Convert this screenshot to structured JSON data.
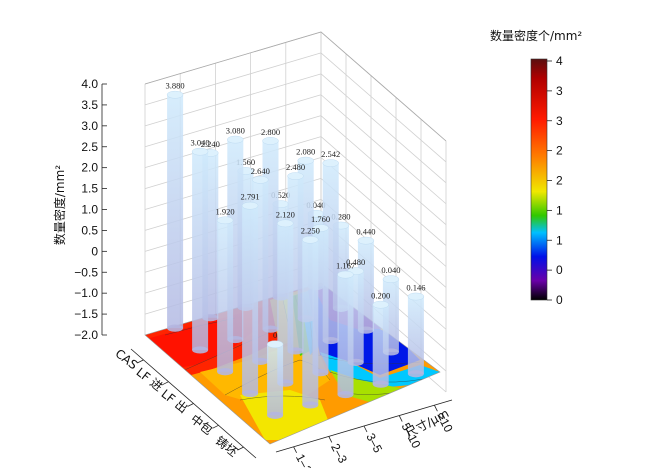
{
  "chart_data": {
    "type": "3d-bar-with-contour",
    "title": "",
    "zlabel": "数量密度/mm²",
    "xlabel": "尺寸/μm",
    "zlim": [
      -2.0,
      4.0
    ],
    "z_ticks": [
      "4.0",
      "3.5",
      "3.0",
      "2.5",
      "2.0",
      "1.5",
      "1.0",
      "0.5",
      "0",
      "−0.5",
      "−1.0",
      "−1.5",
      "−2.0"
    ],
    "size_categories": [
      "1–2",
      "2–3",
      "3–5",
      "5–10",
      ">10"
    ],
    "process_categories": [
      "CAS",
      "LF 进",
      "LF 出",
      "中包",
      "铸坯"
    ],
    "bars": [
      {
        "process": "CAS",
        "size": "1–2",
        "value": 3.88,
        "label": "3.880"
      },
      {
        "process": "CAS",
        "size": "2–3",
        "value": 2.24,
        "label": "2.240"
      },
      {
        "process": "CAS",
        "size": "3–5",
        "value": 1.56,
        "label": "1.560"
      },
      {
        "process": "CAS",
        "size": "5–10",
        "value": 0.52,
        "label": "0.520"
      },
      {
        "process": "CAS",
        "size": ">10",
        "value": 0.04,
        "label": "0.040"
      },
      {
        "process": "LF 进",
        "size": "1–2",
        "value": 3.04,
        "label": "3.040"
      },
      {
        "process": "LF 进",
        "size": "2–3",
        "value": 3.08,
        "label": "3.080"
      },
      {
        "process": "LF 进",
        "size": "3–5",
        "value": 2.8,
        "label": "2.800"
      },
      {
        "process": "LF 进",
        "size": "5–10",
        "value": 2.08,
        "label": "2.080"
      },
      {
        "process": "LF 进",
        "size": ">10",
        "value": 0.28,
        "label": "0.280"
      },
      {
        "process": "LF 出",
        "size": "1–2",
        "value": 1.92,
        "label": "1.920"
      },
      {
        "process": "LF 出",
        "size": "2–3",
        "value": 2.64,
        "label": "2.640"
      },
      {
        "process": "LF 出",
        "size": "3–5",
        "value": 2.48,
        "label": "2.480"
      },
      {
        "process": "LF 出",
        "size": "5–10",
        "value": 2.542,
        "label": "2.542"
      },
      {
        "process": "LF 出",
        "size": ">10",
        "value": 0.44,
        "label": "0.440"
      },
      {
        "process": "中包",
        "size": "1–2",
        "value": 2.791,
        "label": "2.791"
      },
      {
        "process": "中包",
        "size": "2–3",
        "value": 2.12,
        "label": "2.120"
      },
      {
        "process": "中包",
        "size": "3–5",
        "value": 1.76,
        "label": "1.760"
      },
      {
        "process": "中包",
        "size": "5–10",
        "value": 0.48,
        "label": "0.480"
      },
      {
        "process": "中包",
        "size": ">10",
        "value": 0.04,
        "label": "0.040"
      },
      {
        "process": "铸坯",
        "size": "1–2",
        "value": 0,
        "label": "0"
      },
      {
        "process": "铸坯",
        "size": "2–3",
        "value": 2.25,
        "label": "2.250"
      },
      {
        "process": "铸坯",
        "size": "3–5",
        "value": 1.167,
        "label": "1.167"
      },
      {
        "process": "铸坯",
        "size": "5–10",
        "value": 0.2,
        "label": "0.200"
      },
      {
        "process": "铸坯",
        "size": ">10",
        "value": 0.146,
        "label": "0.146"
      }
    ],
    "colorbar": {
      "title": "数量密度个/mm²",
      "tick_labels": [
        "4",
        "3",
        "3",
        "2",
        "2",
        "1",
        "1",
        "0",
        "0"
      ],
      "colors": [
        "#5a0f0f",
        "#cc0000",
        "#ff2a00",
        "#ff8c00",
        "#e8e000",
        "#00c800",
        "#00c8ff",
        "#0000e0",
        "#6a00a8",
        "#000000"
      ]
    },
    "grid": true
  }
}
